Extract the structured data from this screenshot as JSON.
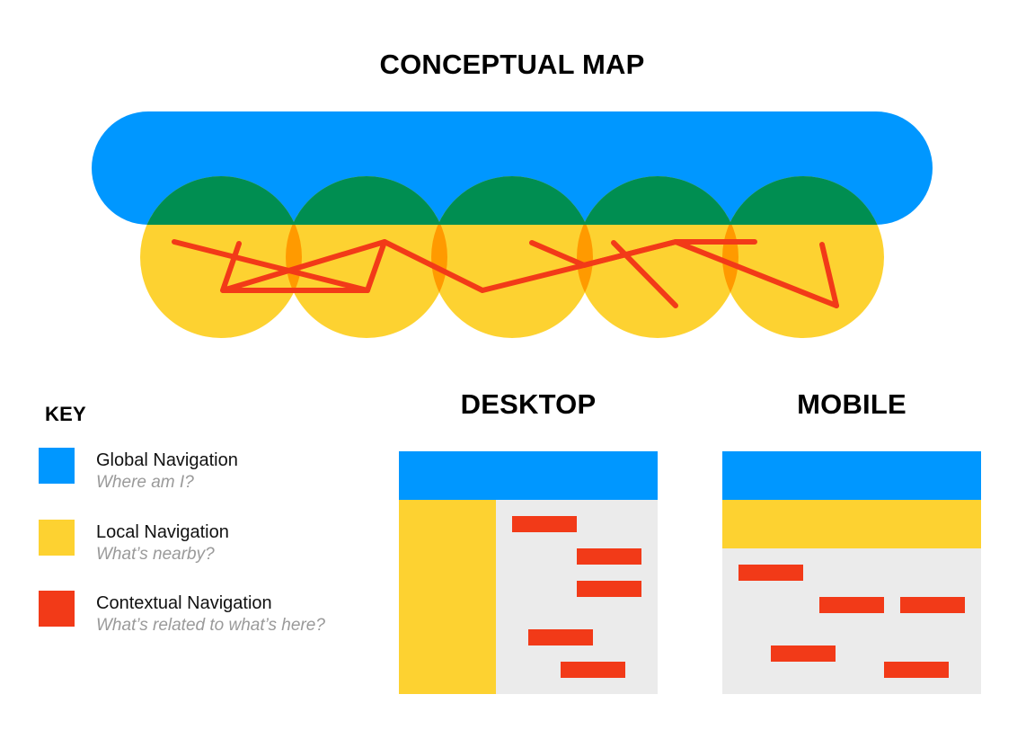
{
  "titles": {
    "conceptual_map": "CONCEPTUAL MAP",
    "desktop": "DESKTOP",
    "mobile": "MOBILE",
    "key": "KEY"
  },
  "colors": {
    "global": "#0097FF",
    "local": "#FDD231",
    "contextual": "#F23A18",
    "overlap_global_local": "#008E51",
    "overlap_local_local": "#FF9A00",
    "canvas": "#EBEBEB"
  },
  "key": {
    "items": [
      {
        "id": "global",
        "label": "Global Navigation",
        "question": "Where am I?"
      },
      {
        "id": "local",
        "label": "Local Navigation",
        "question": "What’s nearby?"
      },
      {
        "id": "contextual",
        "label": "Contextual Navigation",
        "question": "What’s related to what’s here?"
      }
    ]
  },
  "conceptual_map": {
    "local_circle_count": 5,
    "contextual_link_count": 8
  },
  "desktop": {
    "layout": "global top bar, local left sidebar",
    "contextual_link_count": 5
  },
  "mobile": {
    "layout": "global top bar, local second bar",
    "contextual_link_count": 5
  }
}
